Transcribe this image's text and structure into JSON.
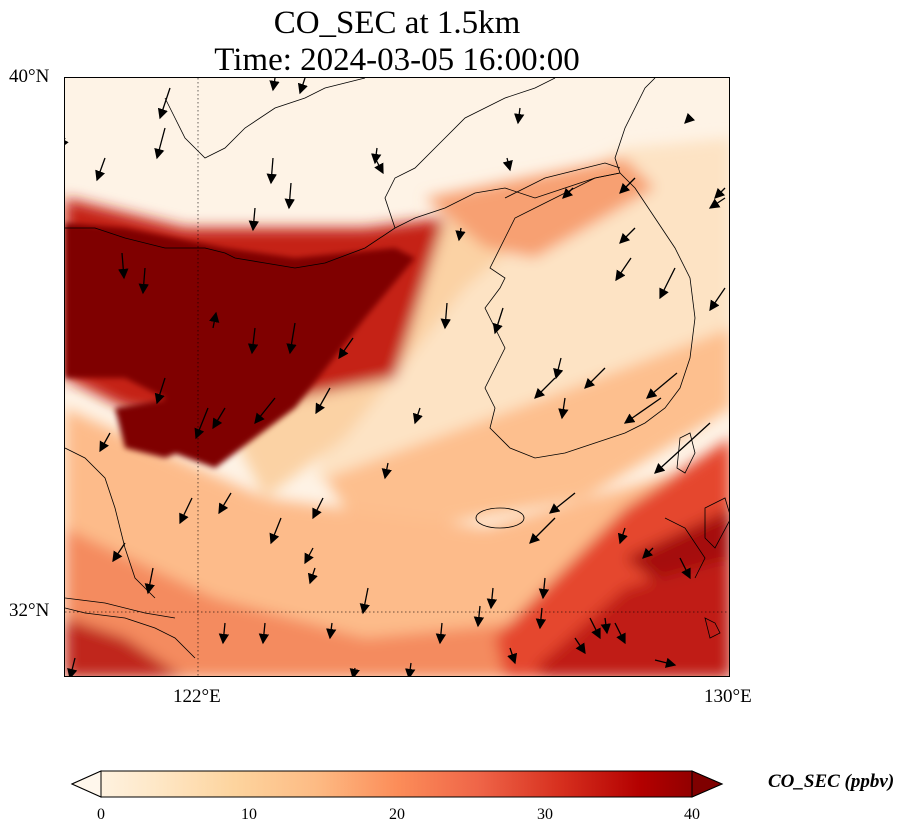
{
  "title": {
    "line1": "CO_SEC at 1.5km",
    "line2": "Time: 2024-03-05 16:00:00"
  },
  "axes": {
    "lat_ticks": [
      "40°N",
      "32°N"
    ],
    "lon_ticks": [
      "122°E",
      "130°E"
    ],
    "lon_range": [
      120,
      130
    ],
    "lat_range": [
      31,
      40
    ],
    "gridlines": "dotted"
  },
  "colorbar": {
    "label": "CO_SEC (ppbv)",
    "ticks": [
      "0",
      "10",
      "20",
      "30",
      "40"
    ],
    "range": [
      0,
      40
    ],
    "colormap": "OrRd",
    "extend": "both"
  },
  "colors": {
    "low": "#fff7ec",
    "mid": "#fc8d59",
    "high": "#7f0000"
  },
  "map_features": [
    "coastline",
    "wind-vectors",
    "co-concentration-field"
  ]
}
